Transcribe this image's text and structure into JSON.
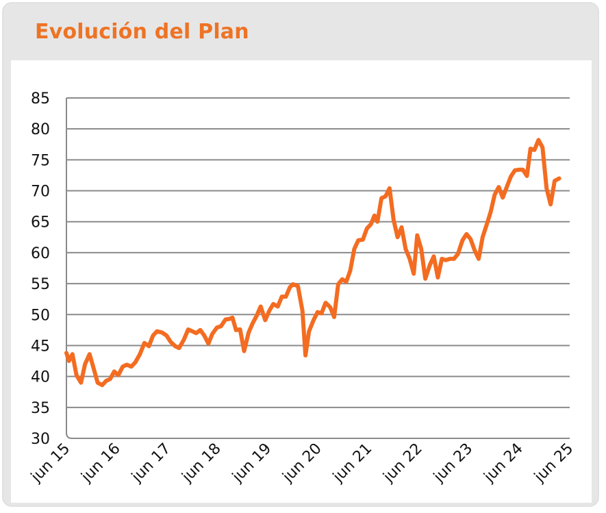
{
  "title": "Evolución del Plan",
  "colors": {
    "accent": "#f36c21",
    "title": "#ee7325",
    "grid": "#8a8a8a",
    "card_bg": "#e6e6e6"
  },
  "chart_data": {
    "type": "line",
    "title": "Evolución del Plan",
    "xlabel": "",
    "ylabel": "",
    "ylim": [
      30,
      85
    ],
    "xlim": [
      2015.5,
      2025.5
    ],
    "yticks": [
      30,
      35,
      40,
      45,
      50,
      55,
      60,
      65,
      70,
      75,
      80,
      85
    ],
    "xticks": [
      {
        "x": 2015.5,
        "label": "jun 15"
      },
      {
        "x": 2016.5,
        "label": "jun 16"
      },
      {
        "x": 2017.5,
        "label": "jun 17"
      },
      {
        "x": 2018.5,
        "label": "jun 18"
      },
      {
        "x": 2019.5,
        "label": "jun 19"
      },
      {
        "x": 2020.5,
        "label": "jun 20"
      },
      {
        "x": 2021.5,
        "label": "jun 21"
      },
      {
        "x": 2022.5,
        "label": "jun 22"
      },
      {
        "x": 2023.5,
        "label": "jun 23"
      },
      {
        "x": 2024.5,
        "label": "jun 24"
      },
      {
        "x": 2025.5,
        "label": "jun 25"
      }
    ],
    "grid": true,
    "legend": "none",
    "series": [
      {
        "color": "#f36c21",
        "points": [
          [
            2015.5,
            43.8
          ],
          [
            2015.55,
            42.5
          ],
          [
            2015.62,
            43.6
          ],
          [
            2015.7,
            40.2
          ],
          [
            2015.79,
            39.0
          ],
          [
            2015.87,
            42.0
          ],
          [
            2015.96,
            43.6
          ],
          [
            2016.03,
            41.6
          ],
          [
            2016.12,
            39.0
          ],
          [
            2016.21,
            38.6
          ],
          [
            2016.29,
            39.3
          ],
          [
            2016.37,
            39.6
          ],
          [
            2016.45,
            40.8
          ],
          [
            2016.53,
            40.2
          ],
          [
            2016.62,
            41.6
          ],
          [
            2016.7,
            41.9
          ],
          [
            2016.79,
            41.6
          ],
          [
            2016.87,
            42.3
          ],
          [
            2016.96,
            43.6
          ],
          [
            2017.05,
            45.4
          ],
          [
            2017.14,
            44.9
          ],
          [
            2017.22,
            46.6
          ],
          [
            2017.3,
            47.3
          ],
          [
            2017.4,
            47.1
          ],
          [
            2017.49,
            46.6
          ],
          [
            2017.57,
            45.6
          ],
          [
            2017.66,
            44.9
          ],
          [
            2017.74,
            44.6
          ],
          [
            2017.83,
            45.9
          ],
          [
            2017.92,
            47.6
          ],
          [
            2018.0,
            47.3
          ],
          [
            2018.08,
            47.0
          ],
          [
            2018.16,
            47.5
          ],
          [
            2018.24,
            46.6
          ],
          [
            2018.32,
            45.3
          ],
          [
            2018.4,
            46.9
          ],
          [
            2018.49,
            47.9
          ],
          [
            2018.57,
            48.1
          ],
          [
            2018.66,
            49.2
          ],
          [
            2018.74,
            49.3
          ],
          [
            2018.8,
            49.5
          ],
          [
            2018.87,
            47.5
          ],
          [
            2018.95,
            47.6
          ],
          [
            2019.03,
            44.1
          ],
          [
            2019.12,
            47.1
          ],
          [
            2019.2,
            48.6
          ],
          [
            2019.28,
            49.8
          ],
          [
            2019.36,
            51.3
          ],
          [
            2019.45,
            49.1
          ],
          [
            2019.53,
            50.6
          ],
          [
            2019.61,
            51.7
          ],
          [
            2019.7,
            51.3
          ],
          [
            2019.78,
            52.9
          ],
          [
            2019.86,
            52.9
          ],
          [
            2019.94,
            54.4
          ],
          [
            2020.0,
            54.9
          ],
          [
            2020.1,
            54.6
          ],
          [
            2020.19,
            50.6
          ],
          [
            2020.25,
            43.4
          ],
          [
            2020.32,
            47.3
          ],
          [
            2020.41,
            49.1
          ],
          [
            2020.49,
            50.4
          ],
          [
            2020.57,
            50.2
          ],
          [
            2020.65,
            51.9
          ],
          [
            2020.74,
            51.2
          ],
          [
            2020.82,
            49.6
          ],
          [
            2020.9,
            54.9
          ],
          [
            2020.98,
            55.7
          ],
          [
            2021.06,
            55.3
          ],
          [
            2021.14,
            57.1
          ],
          [
            2021.22,
            60.6
          ],
          [
            2021.3,
            62.0
          ],
          [
            2021.39,
            62.1
          ],
          [
            2021.47,
            63.9
          ],
          [
            2021.55,
            64.6
          ],
          [
            2021.62,
            66.0
          ],
          [
            2021.68,
            65.0
          ],
          [
            2021.76,
            68.8
          ],
          [
            2021.84,
            69.1
          ],
          [
            2021.92,
            70.4
          ],
          [
            2022.0,
            65.3
          ],
          [
            2022.08,
            62.5
          ],
          [
            2022.16,
            64.1
          ],
          [
            2022.24,
            60.6
          ],
          [
            2022.32,
            59.0
          ],
          [
            2022.4,
            56.6
          ],
          [
            2022.47,
            62.8
          ],
          [
            2022.55,
            60.6
          ],
          [
            2022.63,
            55.8
          ],
          [
            2022.72,
            58.0
          ],
          [
            2022.8,
            59.4
          ],
          [
            2022.88,
            56.0
          ],
          [
            2022.96,
            59.0
          ],
          [
            2023.04,
            58.8
          ],
          [
            2023.12,
            59.0
          ],
          [
            2023.2,
            59.0
          ],
          [
            2023.28,
            59.8
          ],
          [
            2023.37,
            62.0
          ],
          [
            2023.45,
            63.0
          ],
          [
            2023.53,
            62.2
          ],
          [
            2023.61,
            60.4
          ],
          [
            2023.69,
            59.0
          ],
          [
            2023.77,
            62.5
          ],
          [
            2023.85,
            64.5
          ],
          [
            2023.93,
            66.6
          ],
          [
            2024.01,
            69.4
          ],
          [
            2024.09,
            70.6
          ],
          [
            2024.17,
            68.9
          ],
          [
            2024.25,
            70.6
          ],
          [
            2024.33,
            72.3
          ],
          [
            2024.41,
            73.3
          ],
          [
            2024.49,
            73.4
          ],
          [
            2024.57,
            73.4
          ],
          [
            2024.65,
            72.4
          ],
          [
            2024.72,
            76.8
          ],
          [
            2024.8,
            76.6
          ],
          [
            2024.88,
            78.2
          ],
          [
            2024.96,
            77.0
          ],
          [
            2025.04,
            70.4
          ],
          [
            2025.12,
            67.8
          ],
          [
            2025.2,
            71.6
          ],
          [
            2025.29,
            72.0
          ]
        ]
      }
    ]
  }
}
